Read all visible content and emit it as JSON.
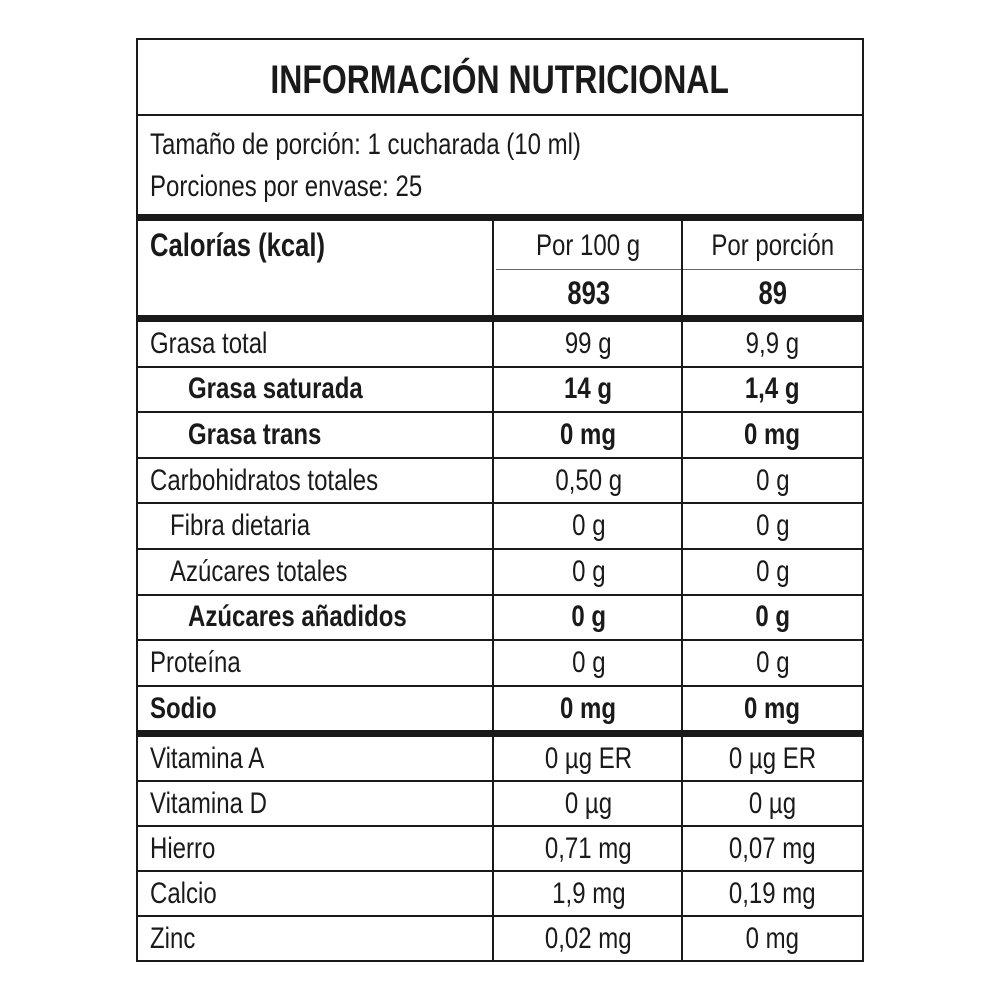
{
  "title": "INFORMACIÓN NUTRICIONAL",
  "serving_size": "Tamaño de porción: 1 cucharada (10 ml)",
  "servings_per_container": "Porciones por envase: 25",
  "calories": {
    "label": "Calorías (kcal)",
    "col1_header": "Por 100 g",
    "col2_header": "Por porción",
    "per_100g": "893",
    "per_serving": "89"
  },
  "nutrients": [
    {
      "name": "Grasa total",
      "per_100g": "99 g",
      "per_serving": "9,9 g",
      "bold": false,
      "indent": 0
    },
    {
      "name": "Grasa saturada",
      "per_100g": "14 g",
      "per_serving": "1,4 g",
      "bold": true,
      "indent": 2
    },
    {
      "name": "Grasa trans",
      "per_100g": "0 mg",
      "per_serving": "0 mg",
      "bold": true,
      "indent": 2
    },
    {
      "name": "Carbohidratos totales",
      "per_100g": "0,50 g",
      "per_serving": "0 g",
      "bold": false,
      "indent": 0
    },
    {
      "name": "Fibra dietaria",
      "per_100g": "0 g",
      "per_serving": "0 g",
      "bold": false,
      "indent": 1
    },
    {
      "name": "Azúcares totales",
      "per_100g": "0 g",
      "per_serving": "0 g",
      "bold": false,
      "indent": 1
    },
    {
      "name": "Azúcares añadidos",
      "per_100g": "0 g",
      "per_serving": "0 g",
      "bold": true,
      "indent": 2
    },
    {
      "name": "Proteína",
      "per_100g": "0 g",
      "per_serving": "0 g",
      "bold": false,
      "indent": 0
    },
    {
      "name": "Sodio",
      "per_100g": "0 mg",
      "per_serving": "0 mg",
      "bold": true,
      "indent": 0
    }
  ],
  "micronutrients": [
    {
      "name": "Vitamina A",
      "per_100g": "0 µg ER",
      "per_serving": "0 µg ER"
    },
    {
      "name": "Vitamina D",
      "per_100g": "0 µg",
      "per_serving": "0 µg"
    },
    {
      "name": "Hierro",
      "per_100g": "0,71 mg",
      "per_serving": "0,07 mg"
    },
    {
      "name": "Calcio",
      "per_100g": "1,9 mg",
      "per_serving": "0,19 mg"
    },
    {
      "name": "Zinc",
      "per_100g": "0,02 mg",
      "per_serving": "0 mg"
    }
  ]
}
